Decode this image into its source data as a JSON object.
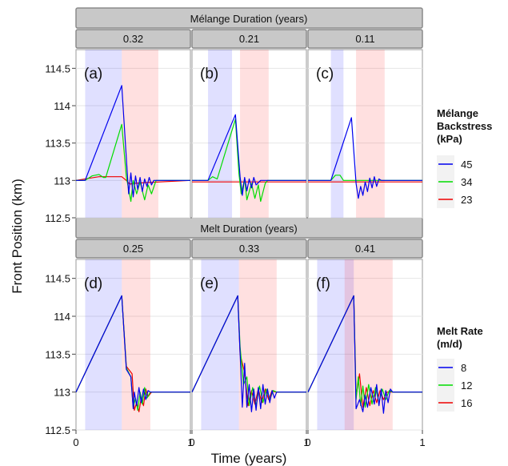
{
  "figure": {
    "ylabel": "Front Position (km)",
    "xlabel": "Time (years)"
  },
  "chart_data": [
    {
      "type": "line",
      "group_strip": "Mélange Duration (years)",
      "legend": {
        "title_lines": [
          "Mélange",
          "Backstress",
          "(kPa)"
        ],
        "placement": "right"
      },
      "ylim": [
        112.5,
        114.75
      ],
      "y_ticks": [
        "112.5",
        "113",
        "113.5",
        "114",
        "114.5"
      ],
      "series_colors": {
        "45": "#0000ee",
        "34": "#00dd00",
        "23": "#ee0000"
      },
      "panels": [
        {
          "strip": "0.32",
          "tag": "(a)",
          "xlim": [
            0,
            1
          ],
          "blue_band": [
            0.08,
            0.4
          ],
          "red_band": [
            0.4,
            0.72
          ],
          "series": [
            {
              "name": "45",
              "x": [
                0,
                0.08,
                0.4,
                0.44,
                0.46,
                0.48,
                0.5,
                0.52,
                0.54,
                0.56,
                0.58,
                0.6,
                0.62,
                0.64,
                0.66,
                0.68,
                0.7,
                1
              ],
              "y": [
                113,
                113,
                114.27,
                113.3,
                112.82,
                113.1,
                112.78,
                113.06,
                112.88,
                113.04,
                112.85,
                113.02,
                112.92,
                113.04,
                112.94,
                113.0,
                113.0,
                113.0
              ]
            },
            {
              "name": "34",
              "x": [
                0,
                0.08,
                0.14,
                0.2,
                0.24,
                0.26,
                0.4,
                0.44,
                0.48,
                0.5,
                0.53,
                0.56,
                0.6,
                0.63,
                0.66,
                0.7,
                1
              ],
              "y": [
                113,
                113,
                113.06,
                113.08,
                113.04,
                113.04,
                113.75,
                113.05,
                112.72,
                113.0,
                112.82,
                112.98,
                112.74,
                112.94,
                112.82,
                113.0,
                113.0
              ]
            },
            {
              "name": "23",
              "x": [
                0,
                0.2,
                0.4,
                0.44,
                0.47,
                0.5,
                0.6,
                1
              ],
              "y": [
                113,
                113.05,
                113.05,
                113.0,
                112.95,
                112.96,
                112.97,
                113.0
              ]
            }
          ]
        },
        {
          "strip": "0.21",
          "tag": "(b)",
          "xlim": [
            0,
            1
          ],
          "blue_band": [
            0.14,
            0.35
          ],
          "red_band": [
            0.42,
            0.67
          ],
          "series": [
            {
              "name": "45",
              "x": [
                0,
                0.14,
                0.38,
                0.42,
                0.44,
                0.46,
                0.48,
                0.5,
                0.52,
                0.54,
                0.56,
                0.6,
                1
              ],
              "y": [
                113,
                113,
                113.88,
                113.05,
                112.8,
                113.04,
                112.86,
                113.02,
                112.9,
                113.04,
                112.94,
                113.0,
                113.0
              ]
            },
            {
              "name": "34",
              "x": [
                0,
                0.14,
                0.18,
                0.22,
                0.38,
                0.41,
                0.43,
                0.46,
                0.48,
                0.52,
                0.55,
                0.58,
                0.6,
                0.64,
                0.66,
                1
              ],
              "y": [
                113,
                113,
                113.05,
                113.02,
                113.82,
                113.1,
                112.82,
                113.02,
                112.74,
                112.96,
                112.76,
                112.94,
                112.72,
                112.96,
                113.0,
                113.0
              ]
            },
            {
              "name": "23",
              "x": [
                0,
                1
              ],
              "y": [
                112.98,
                112.98
              ]
            }
          ]
        },
        {
          "strip": "0.11",
          "tag": "(c)",
          "xlim": [
            0,
            1
          ],
          "blue_band": [
            0.2,
            0.31
          ],
          "red_band": [
            0.42,
            0.67
          ],
          "series": [
            {
              "name": "45",
              "x": [
                0,
                0.2,
                0.38,
                0.42,
                0.44,
                0.46,
                0.48,
                0.5,
                0.52,
                0.54,
                0.56,
                0.58,
                0.6,
                0.62,
                0.64,
                0.66,
                1
              ],
              "y": [
                113,
                113,
                113.84,
                112.96,
                112.76,
                112.92,
                112.8,
                112.98,
                112.85,
                113.03,
                112.9,
                113.05,
                112.92,
                113.02,
                113.0,
                113.0,
                113.0
              ]
            },
            {
              "name": "34",
              "x": [
                0,
                0.2,
                0.24,
                0.28,
                0.31,
                1
              ],
              "y": [
                113,
                113,
                113.07,
                113.07,
                113.0,
                113.0
              ]
            },
            {
              "name": "23",
              "x": [
                0,
                1
              ],
              "y": [
                112.98,
                112.98
              ]
            }
          ]
        }
      ]
    },
    {
      "type": "line",
      "group_strip": "Melt Duration (years)",
      "legend": {
        "title_lines": [
          "Melt Rate",
          "(m/d)"
        ],
        "placement": "right"
      },
      "ylim": [
        112.5,
        114.75
      ],
      "y_ticks": [
        "112.5",
        "113",
        "113.5",
        "114",
        "114.5"
      ],
      "series_colors": {
        "8": "#0000ee",
        "12": "#00dd00",
        "16": "#ee0000"
      },
      "panels": [
        {
          "strip": "0.25",
          "tag": "(d)",
          "xlim": [
            0,
            1
          ],
          "blue_band": [
            0.08,
            0.4
          ],
          "red_band": [
            0.4,
            0.65
          ],
          "series": [
            {
              "name": "8",
              "x": [
                0,
                0.4,
                0.44,
                0.48,
                0.5,
                0.51,
                0.53,
                0.55,
                0.57,
                0.59,
                0.61,
                0.63,
                0.65,
                1
              ],
              "y": [
                113,
                114.27,
                113.3,
                113.2,
                112.78,
                113.0,
                112.82,
                113.06,
                112.86,
                113.04,
                112.9,
                113.02,
                113.0,
                113.0
              ]
            },
            {
              "name": "12",
              "x": [
                0,
                0.4,
                0.44,
                0.48,
                0.5,
                0.52,
                0.54,
                0.56,
                0.58,
                0.6,
                0.62,
                0.65,
                1
              ],
              "y": [
                113,
                114.27,
                113.32,
                113.2,
                112.8,
                112.92,
                112.76,
                113.0,
                112.84,
                113.06,
                112.92,
                113.0,
                113.0
              ]
            },
            {
              "name": "16",
              "x": [
                0,
                0.4,
                0.44,
                0.49,
                0.51,
                0.53,
                0.55,
                0.57,
                0.59,
                0.61,
                0.63,
                0.66,
                1
              ],
              "y": [
                113,
                114.27,
                113.34,
                113.24,
                112.76,
                112.86,
                112.74,
                112.92,
                112.82,
                113.04,
                112.94,
                113.0,
                113.0
              ]
            }
          ]
        },
        {
          "strip": "0.33",
          "tag": "(e)",
          "xlim": [
            0,
            1
          ],
          "blue_band": [
            0.08,
            0.41
          ],
          "red_band": [
            0.41,
            0.74
          ],
          "series": [
            {
              "name": "8",
              "x": [
                0,
                0.4,
                0.41,
                0.44,
                0.46,
                0.48,
                0.5,
                0.52,
                0.54,
                0.56,
                0.58,
                0.6,
                0.62,
                0.64,
                0.66,
                0.68,
                0.7,
                0.72,
                0.74,
                1
              ],
              "y": [
                113,
                114.27,
                113.9,
                112.8,
                113.38,
                112.8,
                113.1,
                112.74,
                113.04,
                112.76,
                113.06,
                112.78,
                113.1,
                112.84,
                113.04,
                112.86,
                113.02,
                112.92,
                113.0,
                113.0
              ]
            },
            {
              "name": "12",
              "x": [
                0,
                0.4,
                0.42,
                0.45,
                0.48,
                0.5,
                0.53,
                0.56,
                0.59,
                0.62,
                0.65,
                0.68,
                0.71,
                0.74,
                1
              ],
              "y": [
                113,
                114.27,
                113.6,
                113.1,
                113.2,
                112.82,
                113.06,
                112.82,
                113.08,
                112.86,
                113.04,
                112.9,
                113.02,
                113.0,
                113.0
              ]
            },
            {
              "name": "16",
              "x": [
                0,
                0.4,
                0.42,
                0.46,
                0.49,
                0.52,
                0.55,
                0.58,
                0.61,
                0.64,
                0.67,
                0.7,
                0.73,
                1
              ],
              "y": [
                113,
                114.27,
                113.5,
                113.26,
                112.82,
                113.02,
                112.84,
                113.04,
                112.86,
                113.04,
                112.9,
                113.02,
                113.0,
                113.0
              ]
            }
          ]
        },
        {
          "strip": "0.41",
          "tag": "(f)",
          "xlim": [
            0,
            1
          ],
          "blue_band": [
            0.08,
            0.4
          ],
          "red_band": [
            0.32,
            0.74
          ],
          "series": [
            {
              "name": "8",
              "x": [
                0,
                0.4,
                0.42,
                0.45,
                0.48,
                0.5,
                0.52,
                0.55,
                0.58,
                0.6,
                0.62,
                0.64,
                0.66,
                0.68,
                0.7,
                0.72,
                0.74,
                1
              ],
              "y": [
                113,
                114.27,
                112.78,
                112.9,
                112.74,
                112.96,
                112.8,
                113.06,
                112.84,
                113.1,
                112.82,
                113.04,
                112.72,
                113.02,
                112.86,
                113.04,
                113.0,
                113.0
              ]
            },
            {
              "name": "12",
              "x": [
                0,
                0.4,
                0.42,
                0.44,
                0.46,
                0.48,
                0.5,
                0.53,
                0.56,
                0.59,
                0.62,
                0.65,
                0.68,
                0.71,
                0.74,
                1
              ],
              "y": [
                113,
                114.27,
                112.9,
                113.2,
                112.82,
                113.08,
                112.8,
                113.1,
                112.84,
                113.06,
                112.86,
                113.04,
                112.9,
                113.02,
                113.0,
                113.0
              ]
            },
            {
              "name": "16",
              "x": [
                0,
                0.4,
                0.42,
                0.45,
                0.48,
                0.51,
                0.54,
                0.57,
                0.6,
                0.63,
                0.66,
                0.69,
                0.72,
                1
              ],
              "y": [
                113,
                114.27,
                112.94,
                113.24,
                112.8,
                113.06,
                112.82,
                113.02,
                112.86,
                113.02,
                112.9,
                113.0,
                113.0,
                113.0
              ]
            }
          ]
        }
      ]
    }
  ]
}
